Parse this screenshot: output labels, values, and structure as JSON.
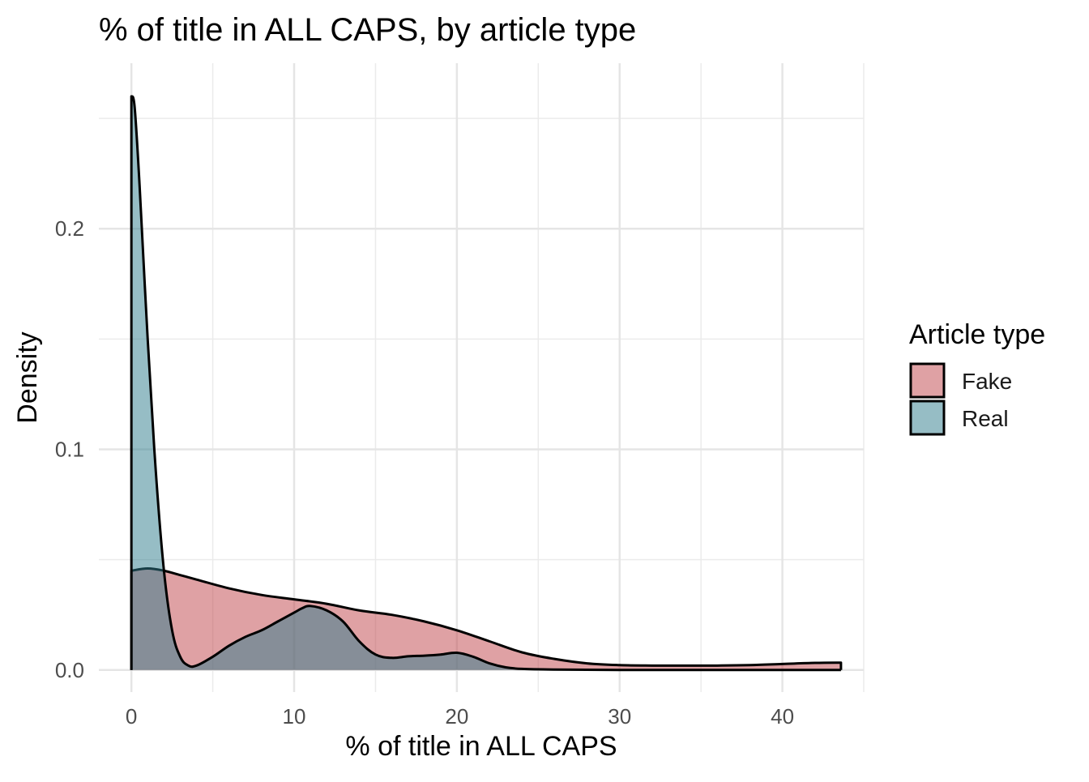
{
  "chart_data": {
    "type": "area",
    "title": "% of title in ALL CAPS, by article type",
    "xlabel": "% of title in ALL CAPS",
    "ylabel": "Density",
    "xlim": [
      -2,
      45
    ],
    "ylim": [
      -0.01,
      0.275
    ],
    "x_ticks": [
      0,
      10,
      20,
      30,
      40
    ],
    "x_tick_labels": [
      "0",
      "10",
      "20",
      "30",
      "40"
    ],
    "x_minor_ticks": [
      5,
      15,
      25,
      35,
      45
    ],
    "y_ticks": [
      0.0,
      0.1,
      0.2
    ],
    "y_tick_labels": [
      "0.0",
      "0.1",
      "0.2"
    ],
    "y_minor_ticks": [
      0.05,
      0.15,
      0.25
    ],
    "grid": true,
    "legend": {
      "title": "Article type",
      "position": "right"
    },
    "series": [
      {
        "name": "Fake",
        "color": "#c0444a",
        "fill_opacity": 0.5,
        "x": [
          0,
          1,
          2,
          3,
          4,
          6,
          8,
          10,
          12,
          14,
          16,
          18,
          20,
          22,
          24,
          26,
          28,
          30,
          32,
          34,
          36,
          38,
          40,
          42,
          43.6
        ],
        "y": [
          0.045,
          0.046,
          0.045,
          0.043,
          0.041,
          0.037,
          0.034,
          0.032,
          0.03,
          0.027,
          0.025,
          0.022,
          0.018,
          0.013,
          0.008,
          0.005,
          0.003,
          0.0022,
          0.002,
          0.002,
          0.002,
          0.0022,
          0.0027,
          0.0032,
          0.0033
        ]
      },
      {
        "name": "Real",
        "color": "#2e7b8c",
        "fill_opacity": 0.5,
        "x": [
          0,
          0.2,
          0.5,
          1,
          1.5,
          2,
          2.5,
          3,
          3.5,
          4,
          5,
          6,
          7,
          8,
          9,
          10,
          10.5,
          11,
          12,
          13,
          14,
          15,
          16,
          17,
          18,
          19,
          20,
          21,
          22,
          23,
          24,
          26,
          30,
          35,
          40,
          43.6
        ],
        "y": [
          0.26,
          0.255,
          0.22,
          0.15,
          0.09,
          0.045,
          0.018,
          0.006,
          0.002,
          0.002,
          0.006,
          0.011,
          0.015,
          0.018,
          0.022,
          0.026,
          0.028,
          0.029,
          0.027,
          0.022,
          0.013,
          0.007,
          0.0055,
          0.0062,
          0.0065,
          0.007,
          0.0078,
          0.006,
          0.003,
          0.0012,
          0.0005,
          0.0002,
          0.0,
          0.0,
          0.0,
          0.0
        ]
      }
    ]
  }
}
